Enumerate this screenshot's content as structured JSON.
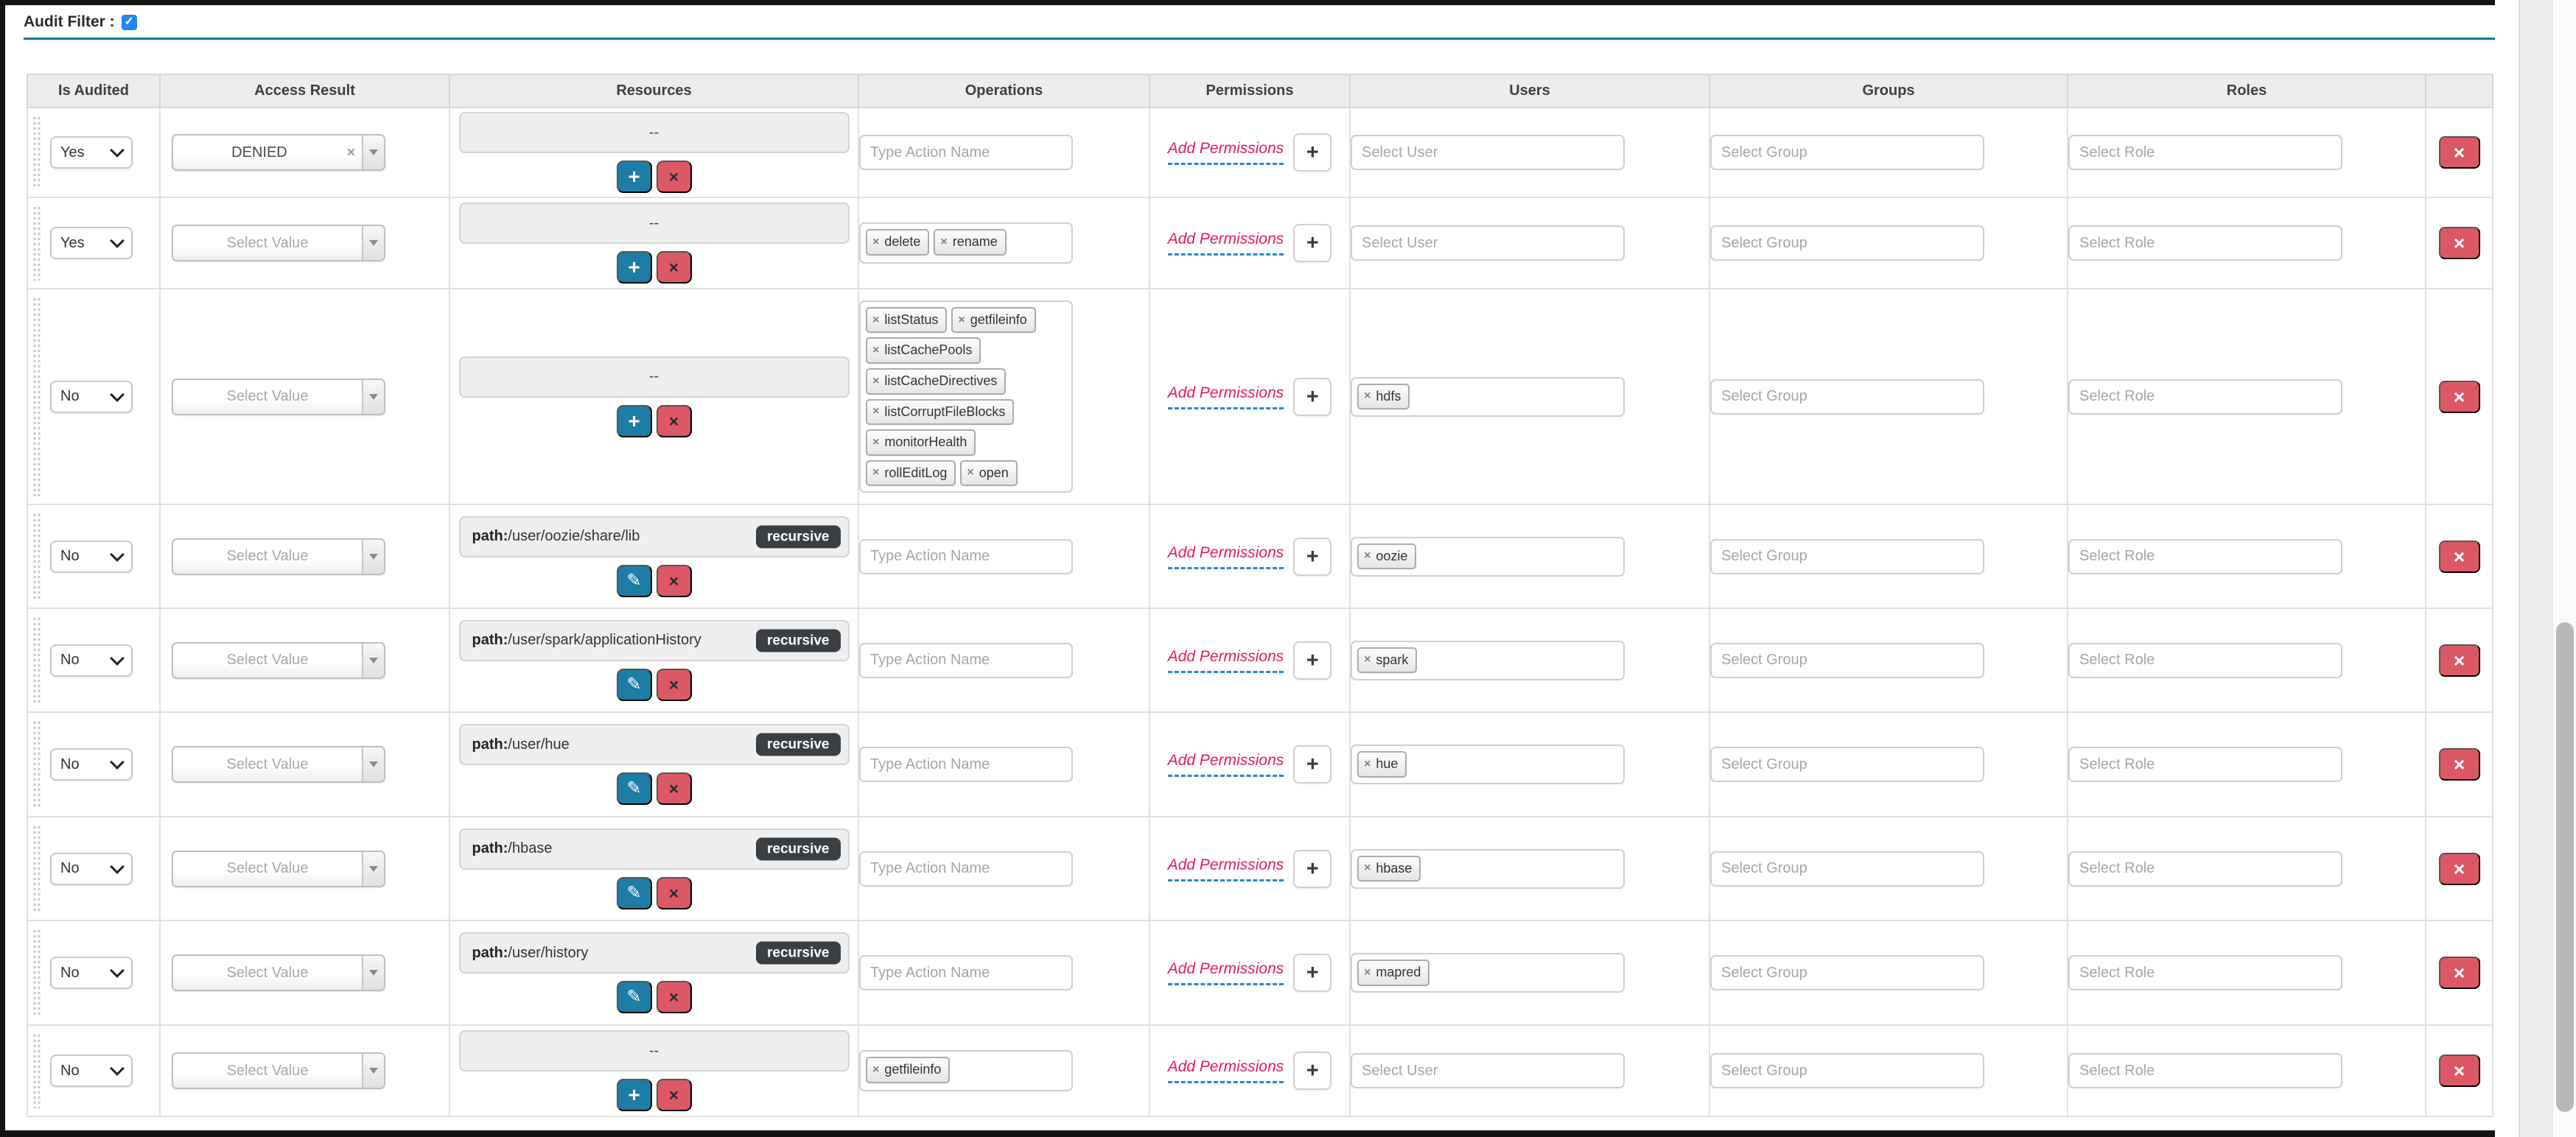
{
  "audit_filter": {
    "label": "Audit Filter :",
    "checked": true
  },
  "columns": [
    "Is Audited",
    "Access Result",
    "Resources",
    "Operations",
    "Permissions",
    "Users",
    "Groups",
    "Roles",
    ""
  ],
  "labels": {
    "add_permissions": "Add Permissions",
    "resource_empty": "--",
    "path_prefix": "path:",
    "recursive_badge": "recursive"
  },
  "placeholders": {
    "access_result": "Select Value",
    "operations": "Type Action Name",
    "user": "Select User",
    "group": "Select Group",
    "role": "Select Role"
  },
  "icons": {
    "checkmark": "✓",
    "clear_x": "×",
    "add_plus": "+",
    "remove_x": "×",
    "edit_pencil": "✎",
    "delete_x": "×",
    "tag_remove_x": "×"
  },
  "colors": {
    "title_underline": "#0f75a0",
    "checkbox_blue": "#1f87f2",
    "button_blue": "#1d7da4",
    "button_red": "#dd5866",
    "badge_dark": "#3a3f44",
    "add_permissions_red": "#e11d54",
    "underline_dash_blue": "#2a86cc"
  },
  "rows": [
    {
      "is_audited": "Yes",
      "access_result": "DENIED",
      "resource_path": null,
      "resource_recursive": false,
      "operation_tags": [],
      "user_tags": []
    },
    {
      "is_audited": "Yes",
      "access_result": null,
      "resource_path": null,
      "resource_recursive": false,
      "operation_tags": [
        "delete",
        "rename"
      ],
      "user_tags": []
    },
    {
      "is_audited": "No",
      "access_result": null,
      "resource_path": null,
      "resource_recursive": false,
      "operation_tags": [
        "listStatus",
        "getfileinfo",
        "listCachePools",
        "listCacheDirectives",
        "listCorruptFileBlocks",
        "monitorHealth",
        "rollEditLog",
        "open"
      ],
      "user_tags": [
        "hdfs"
      ]
    },
    {
      "is_audited": "No",
      "access_result": null,
      "resource_path": "/user/oozie/share/lib",
      "resource_recursive": true,
      "operation_tags": [],
      "user_tags": [
        "oozie"
      ]
    },
    {
      "is_audited": "No",
      "access_result": null,
      "resource_path": "/user/spark/applicationHistory",
      "resource_recursive": true,
      "operation_tags": [],
      "user_tags": [
        "spark"
      ]
    },
    {
      "is_audited": "No",
      "access_result": null,
      "resource_path": "/user/hue",
      "resource_recursive": true,
      "operation_tags": [],
      "user_tags": [
        "hue"
      ]
    },
    {
      "is_audited": "No",
      "access_result": null,
      "resource_path": "/hbase",
      "resource_recursive": true,
      "operation_tags": [],
      "user_tags": [
        "hbase"
      ]
    },
    {
      "is_audited": "No",
      "access_result": null,
      "resource_path": "/user/history",
      "resource_recursive": true,
      "operation_tags": [],
      "user_tags": [
        "mapred"
      ]
    },
    {
      "is_audited": "No",
      "access_result": null,
      "resource_path": null,
      "resource_recursive": false,
      "operation_tags": [
        "getfileinfo"
      ],
      "user_tags": []
    }
  ]
}
